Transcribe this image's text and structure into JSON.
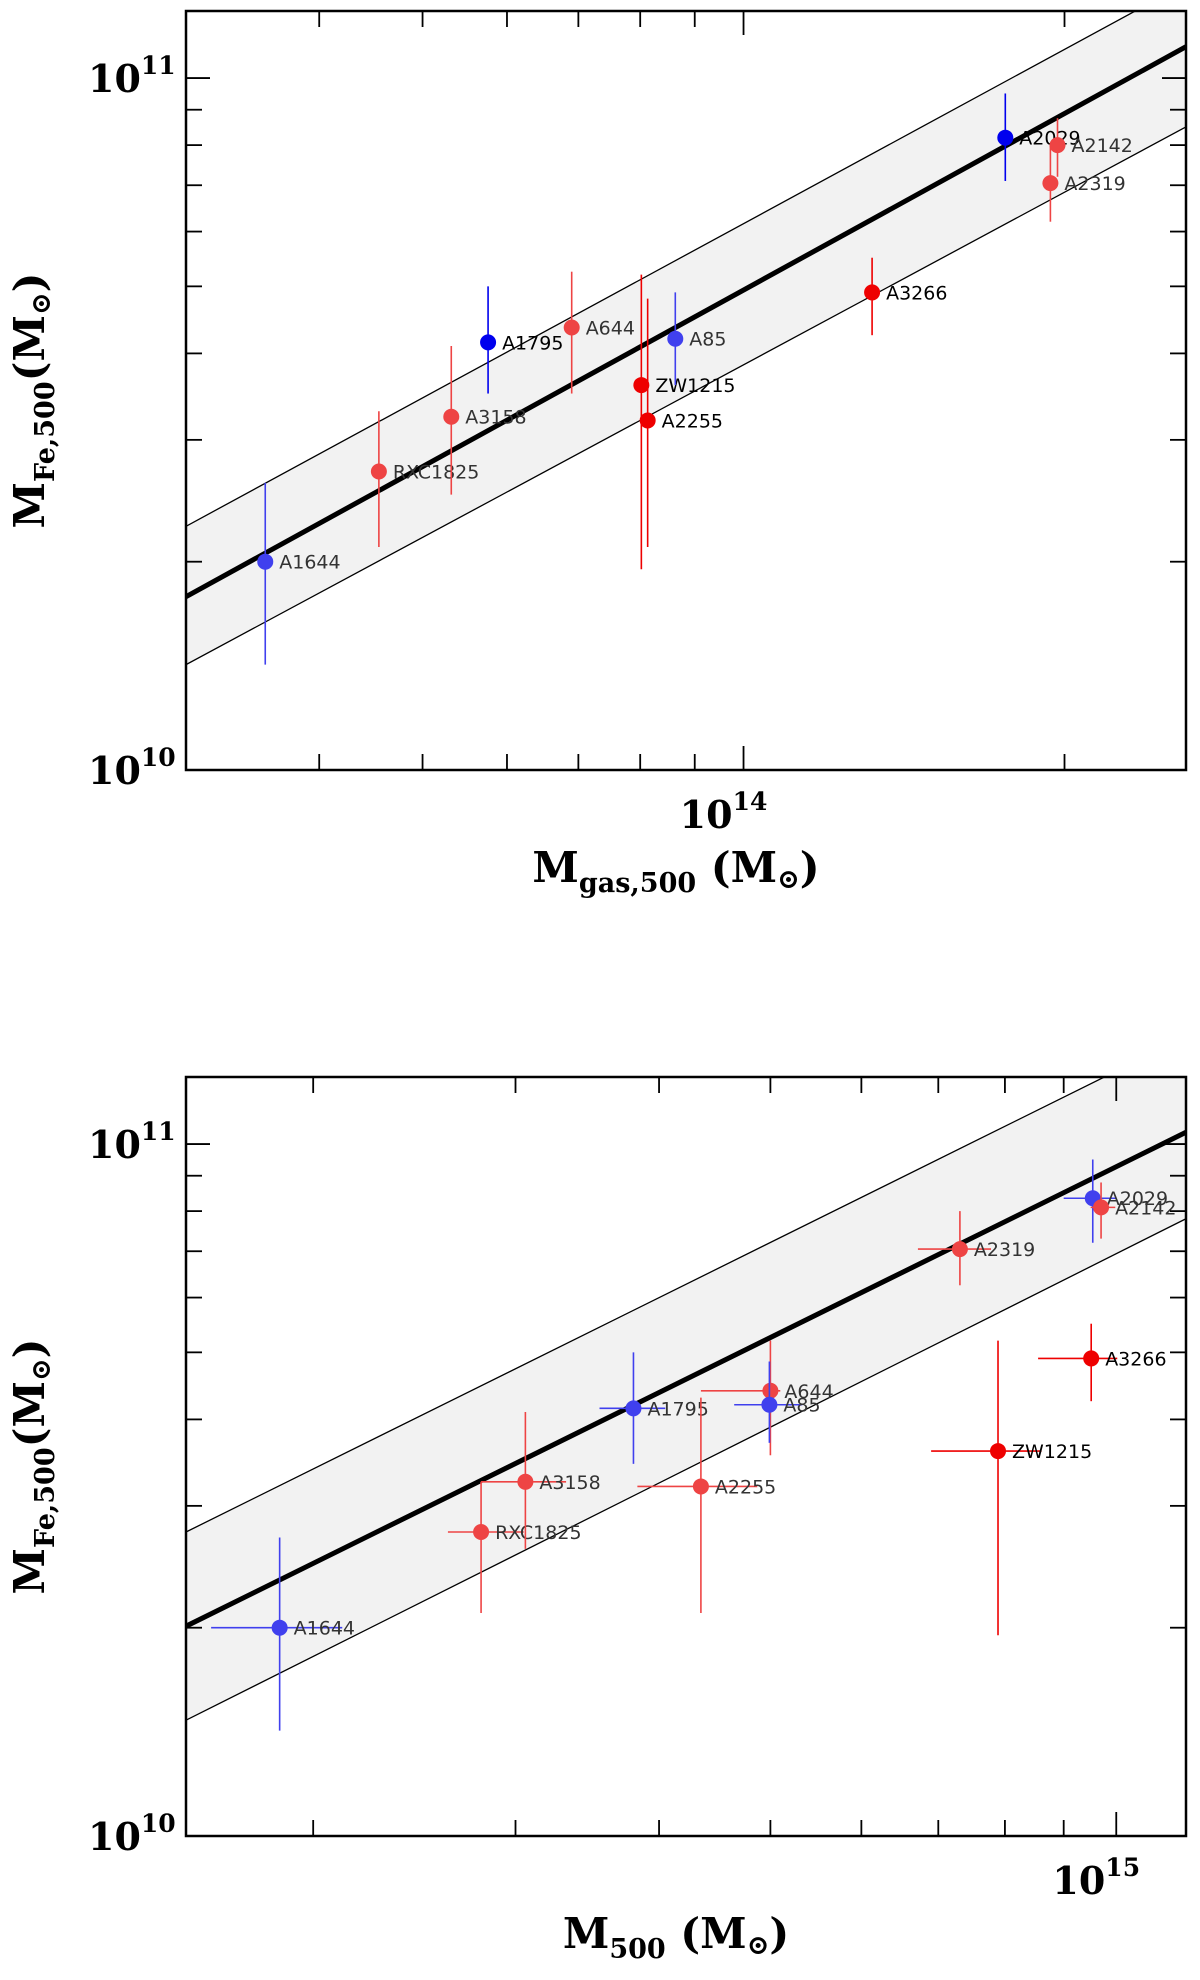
{
  "chart_data": [
    {
      "type": "scatter",
      "panel": "top",
      "xlabel": {
        "main": "M",
        "sub": "gas,500",
        "unit": "(M",
        "unit_sym": "⊙",
        "unit_close": ")"
      },
      "ylabel": {
        "main": "M",
        "sub": "Fe,500",
        "unit": "(M",
        "unit_sym": "⊙",
        "unit_close": ")"
      },
      "xscale": "log",
      "yscale": "log",
      "xlim": [
        30000000000000,
        260000000000000
      ],
      "ylim": [
        10000000000,
        125000000000
      ],
      "x_tick_labels": [
        {
          "value": 100000000000000,
          "base": "10",
          "exp": "14"
        }
      ],
      "y_tick_labels": [
        {
          "value": 10000000000,
          "base": "10",
          "exp": "10"
        },
        {
          "value": 100000000000,
          "base": "10",
          "exp": "11"
        }
      ],
      "fit": {
        "x": [
          30000000000000,
          260000000000000
        ],
        "y": [
          17800000000,
          111000000000
        ]
      },
      "band": {
        "x": [
          30000000000000,
          260000000000000
        ],
        "upper": [
          22500000000,
          137000000000
        ],
        "lower": [
          14200000000,
          85000000000
        ]
      },
      "points": [
        {
          "name": "A1644",
          "x": 35600000000000,
          "y": 20000000000,
          "yerr": [
            14200000000,
            26000000000
          ],
          "color": "#4040ee"
        },
        {
          "name": "RXC1825",
          "x": 45500000000000,
          "y": 27000000000,
          "yerr": [
            21000000000,
            33000000000
          ],
          "color": "#ee4444"
        },
        {
          "name": "A3158",
          "x": 53200000000000,
          "y": 32400000000,
          "yerr": [
            25000000000,
            41000000000
          ],
          "color": "#ee4444"
        },
        {
          "name": "A1795",
          "x": 57600000000000,
          "y": 41500000000,
          "yerr": [
            35000000000,
            50000000000
          ],
          "color": "#0000ee"
        },
        {
          "name": "A644",
          "x": 69000000000000,
          "y": 43600000000,
          "yerr": [
            35000000000,
            52500000000
          ],
          "color": "#ee4444"
        },
        {
          "name": "ZW1215",
          "x": 80200000000000,
          "y": 36000000000,
          "yerr": [
            19500000000,
            52000000000
          ],
          "color": "#ee0000"
        },
        {
          "name": "A2255",
          "x": 81300000000000,
          "y": 32000000000,
          "yerr": [
            21000000000,
            48000000000
          ],
          "color": "#ee0000"
        },
        {
          "name": "A85",
          "x": 86300000000000,
          "y": 42000000000,
          "yerr": [
            36000000000,
            49000000000
          ],
          "color": "#4040ee"
        },
        {
          "name": "A3266",
          "x": 132000000000000,
          "y": 49000000000,
          "yerr": [
            42500000000,
            55000000000
          ],
          "color": "#ee0000"
        },
        {
          "name": "A2029",
          "x": 176000000000000,
          "y": 82000000000,
          "yerr": [
            71000000000,
            95000000000
          ],
          "color": "#0000ee"
        },
        {
          "name": "A2142",
          "x": 197000000000000,
          "y": 80000000000,
          "yerr": [
            72000000000,
            87500000000
          ],
          "color": "#ee4444"
        },
        {
          "name": "A2319",
          "x": 194000000000000,
          "y": 70500000000,
          "yerr": [
            62000000000,
            80000000000
          ],
          "color": "#ee4444"
        }
      ]
    },
    {
      "type": "scatter",
      "panel": "bottom",
      "xlabel": {
        "main": "M",
        "sub": "500",
        "unit": "(M",
        "unit_sym": "⊙",
        "unit_close": ")"
      },
      "ylabel": {
        "main": "M",
        "sub": "Fe,500",
        "unit": "(M",
        "unit_sym": "⊙",
        "unit_close": ")"
      },
      "xscale": "log",
      "yscale": "log",
      "xlim": [
        155000000000000,
        1150000000000000
      ],
      "ylim": [
        10000000000,
        125000000000
      ],
      "x_tick_labels": [
        {
          "value": 1000000000000000,
          "base": "10",
          "exp": "15"
        }
      ],
      "y_tick_labels": [
        {
          "value": 10000000000,
          "base": "10",
          "exp": "10"
        },
        {
          "value": 100000000000,
          "base": "10",
          "exp": "11"
        }
      ],
      "fit": {
        "x": [
          155000000000000,
          1150000000000000
        ],
        "y": [
          20100000000,
          104000000000
        ]
      },
      "band": {
        "x": [
          155000000000000,
          1150000000000000
        ],
        "upper": [
          27500000000,
          143000000000
        ],
        "lower": [
          14700000000,
          78000000000
        ]
      },
      "points": [
        {
          "name": "A1644",
          "x": 187000000000000,
          "y": 20000000000,
          "yerr": [
            14200000000,
            27000000000
          ],
          "xerr": [
            163000000000000,
            212000000000000
          ],
          "color": "#4040ee"
        },
        {
          "name": "RXC1825",
          "x": 280000000000000,
          "y": 27500000000,
          "yerr": [
            21000000000,
            32500000000
          ],
          "xerr": [
            262000000000000,
            305000000000000
          ],
          "color": "#ee4444"
        },
        {
          "name": "A3158",
          "x": 306000000000000,
          "y": 32500000000,
          "yerr": [
            26000000000,
            41000000000
          ],
          "xerr": [
            280000000000000,
            332000000000000
          ],
          "color": "#ee4444"
        },
        {
          "name": "A1795",
          "x": 380000000000000,
          "y": 41500000000,
          "yerr": [
            34500000000,
            50000000000
          ],
          "xerr": [
            355000000000000,
            405000000000000
          ],
          "color": "#4040ee"
        },
        {
          "name": "A2255",
          "x": 435000000000000,
          "y": 32000000000,
          "yerr": [
            21000000000,
            43000000000
          ],
          "xerr": [
            383000000000000,
            487000000000000
          ],
          "color": "#ee4444"
        },
        {
          "name": "A644",
          "x": 500000000000000,
          "y": 44000000000,
          "yerr": [
            35500000000,
            52000000000
          ],
          "xerr": [
            435000000000000,
            510000000000000
          ],
          "color": "#ee4444"
        },
        {
          "name": "A85",
          "x": 499000000000000,
          "y": 42000000000,
          "yerr": [
            37000000000,
            48500000000
          ],
          "xerr": [
            465000000000000,
            533000000000000
          ],
          "color": "#4040ee"
        },
        {
          "name": "A2319",
          "x": 731000000000000,
          "y": 70500000000,
          "yerr": [
            62500000000,
            80000000000
          ],
          "xerr": [
            672000000000000,
            778000000000000
          ],
          "color": "#ee4444"
        },
        {
          "name": "ZW1215",
          "x": 789000000000000,
          "y": 36000000000,
          "yerr": [
            19500000000,
            52000000000
          ],
          "xerr": [
            690000000000000,
            861000000000000
          ],
          "color": "#ee0000"
        },
        {
          "name": "A3266",
          "x": 951000000000000,
          "y": 49000000000,
          "yerr": [
            42500000000,
            55000000000
          ],
          "xerr": [
            855000000000000,
            1002000000000000
          ],
          "color": "#ee0000"
        },
        {
          "name": "A2029",
          "x": 954000000000000,
          "y": 83500000000,
          "yerr": [
            72000000000,
            95000000000
          ],
          "xerr": [
            900000000000000,
            1000000000000000
          ],
          "color": "#4040ee"
        },
        {
          "name": "A2142",
          "x": 970000000000000,
          "y": 81000000000,
          "yerr": [
            73000000000,
            88000000000
          ],
          "xerr": [
            950000000000000,
            998000000000000
          ],
          "color": "#ee4444"
        }
      ]
    }
  ]
}
